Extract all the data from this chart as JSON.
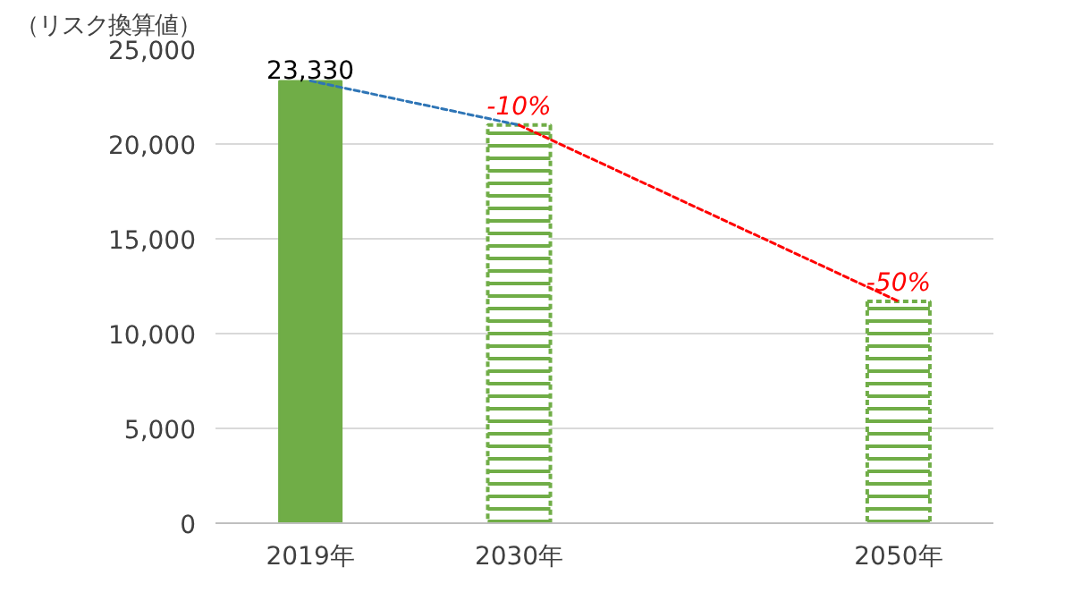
{
  "chart_data": {
    "type": "bar",
    "ylabel": "（リスク換算値）",
    "x": [
      2019,
      2030,
      2050
    ],
    "xlim": [
      2014,
      2055
    ],
    "xticks": [
      {
        "value": 2019,
        "label": "2019年"
      },
      {
        "value": 2030,
        "label": "2030年"
      },
      {
        "value": 2050,
        "label": "2050年"
      }
    ],
    "ylim": [
      0,
      25000
    ],
    "yticks": [
      {
        "value": 0,
        "label": "0"
      },
      {
        "value": 5000,
        "label": "5,000"
      },
      {
        "value": 10000,
        "label": "10,000"
      },
      {
        "value": 15000,
        "label": "15,000"
      },
      {
        "value": 20000,
        "label": "20,000"
      },
      {
        "value": 25000,
        "label": "25,000"
      }
    ],
    "grid": "y",
    "series": [
      {
        "color": "#70ad47",
        "line_style": "solid",
        "values": [
          23330,
          null,
          null
        ],
        "value_labels": [
          "23,330",
          null,
          null
        ]
      },
      {
        "color": "#70ad47",
        "line_style": "dashed",
        "values": [
          null,
          21000,
          11700
        ]
      },
      {
        "type": "line",
        "color": "#2e75b6",
        "line_style": "dashed",
        "marker": "none",
        "x": [
          2019,
          2030
        ],
        "values": [
          23330,
          21000
        ]
      },
      {
        "type": "line",
        "color": "#ff0000",
        "line_style": "dashed",
        "marker": "none",
        "x": [
          2030,
          2050
        ],
        "values": [
          21000,
          11700
        ]
      }
    ],
    "annotations": [
      {
        "text": "-10%",
        "x": 2030,
        "y": 21000
      },
      {
        "text": "-50%",
        "x": 2050,
        "y": 11700
      }
    ]
  }
}
